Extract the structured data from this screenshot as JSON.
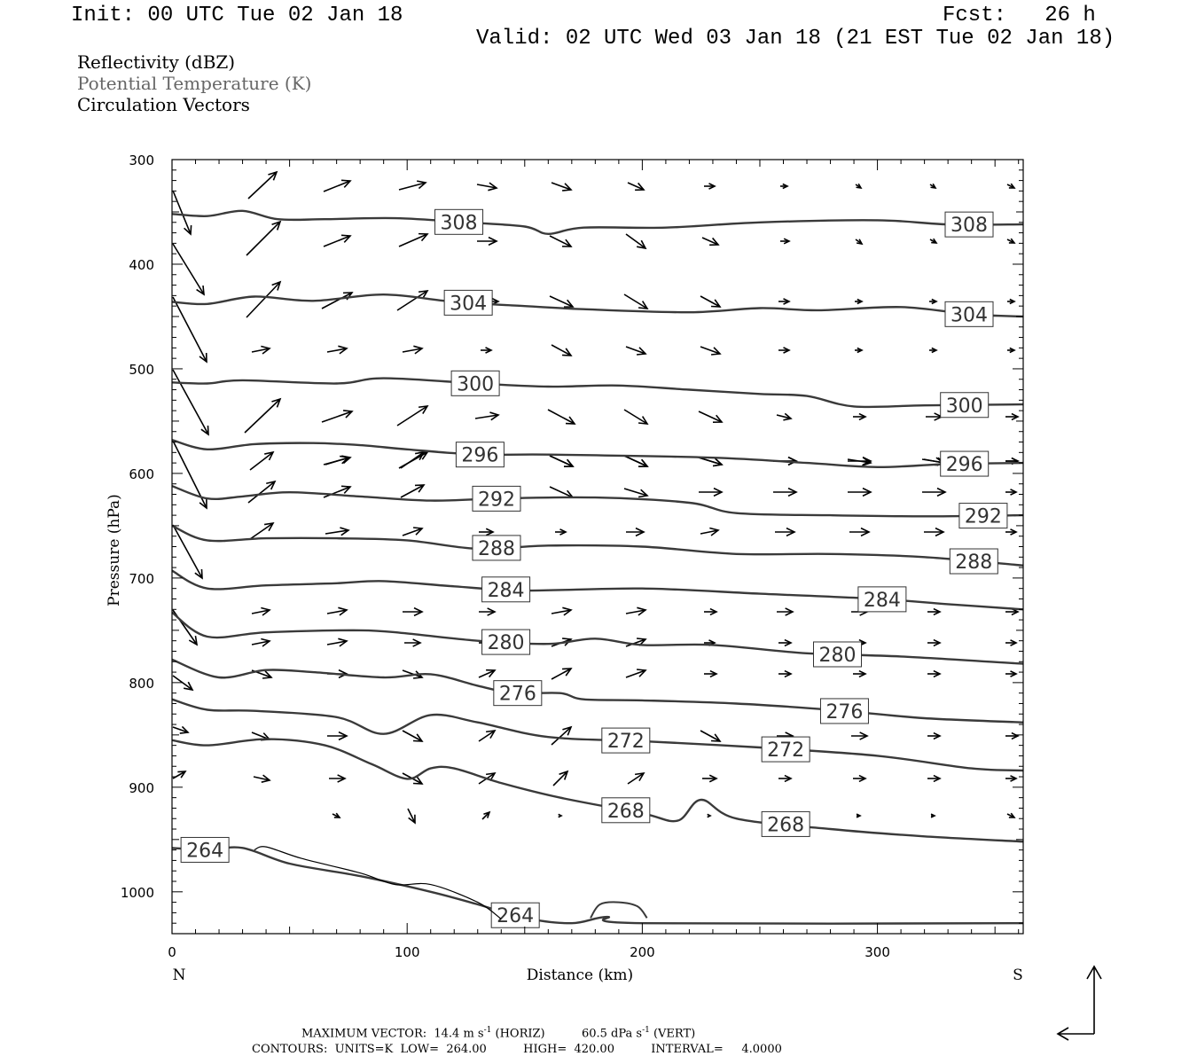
{
  "header": {
    "init": "Init: 00 UTC Tue 02 Jan 18",
    "fcst": "Fcst:   26 h",
    "valid": "Valid: 02 UTC Wed 03 Jan 18 (21 EST Tue 02 Jan 18)"
  },
  "legend": {
    "line1": "Reflectivity (dBZ)",
    "line2": "Potential Temperature (K)",
    "line3": "Circulation Vectors"
  },
  "footer": {
    "vector_prefix": "MAXIMUM VECTOR:  14.4 m s",
    "vector_mid": " (HORIZ)          60.5 dPa s",
    "vector_suffix": " (VERT)",
    "exponent": "-1",
    "contours": "CONTOURS:  UNITS=K  LOW=  264.00          HIGH=  420.00          INTERVAL=     4.0000"
  },
  "chart_data": {
    "type": "line",
    "title": "",
    "xlabel": "Distance (km)",
    "ylabel": "Pressure (hPa)",
    "xlim": [
      0,
      362
    ],
    "ylim": [
      1040,
      300
    ],
    "y_axis_reversed": true,
    "x_ticks": [
      0,
      100,
      200,
      300
    ],
    "y_ticks": [
      300,
      400,
      500,
      600,
      700,
      800,
      900,
      1000
    ],
    "x_end_labels": {
      "left": "N",
      "right": "S"
    },
    "grid": false,
    "contour_units": "K",
    "series": [
      {
        "name": "308",
        "points": [
          [
            0,
            352
          ],
          [
            15,
            354
          ],
          [
            30,
            349
          ],
          [
            45,
            357
          ],
          [
            65,
            357
          ],
          [
            95,
            356
          ],
          [
            125,
            360
          ],
          [
            150,
            364
          ],
          [
            160,
            371
          ],
          [
            175,
            365
          ],
          [
            210,
            365
          ],
          [
            250,
            360
          ],
          [
            300,
            358
          ],
          [
            330,
            362
          ],
          [
            362,
            362
          ]
        ]
      },
      {
        "name": "304",
        "points": [
          [
            0,
            436
          ],
          [
            15,
            438
          ],
          [
            35,
            431
          ],
          [
            60,
            435
          ],
          [
            90,
            429
          ],
          [
            120,
            436
          ],
          [
            150,
            440
          ],
          [
            175,
            443
          ],
          [
            220,
            446
          ],
          [
            250,
            442
          ],
          [
            275,
            444
          ],
          [
            310,
            441
          ],
          [
            340,
            448
          ],
          [
            362,
            450
          ]
        ]
      },
      {
        "name": "300",
        "points": [
          [
            0,
            513
          ],
          [
            15,
            514
          ],
          [
            30,
            511
          ],
          [
            70,
            514
          ],
          [
            90,
            509
          ],
          [
            130,
            514
          ],
          [
            160,
            517
          ],
          [
            190,
            516
          ],
          [
            220,
            520
          ],
          [
            250,
            524
          ],
          [
            270,
            526
          ],
          [
            290,
            536
          ],
          [
            320,
            535
          ],
          [
            362,
            534
          ]
        ]
      },
      {
        "name": "296",
        "points": [
          [
            0,
            568
          ],
          [
            15,
            577
          ],
          [
            35,
            572
          ],
          [
            60,
            571
          ],
          [
            80,
            573
          ],
          [
            100,
            577
          ],
          [
            130,
            582
          ],
          [
            160,
            582
          ],
          [
            230,
            585
          ],
          [
            270,
            590
          ],
          [
            300,
            594
          ],
          [
            330,
            591
          ],
          [
            362,
            590
          ]
        ]
      },
      {
        "name": "292",
        "points": [
          [
            0,
            612
          ],
          [
            15,
            624
          ],
          [
            30,
            622
          ],
          [
            50,
            618
          ],
          [
            80,
            622
          ],
          [
            110,
            626
          ],
          [
            140,
            624
          ],
          [
            180,
            623
          ],
          [
            220,
            628
          ],
          [
            240,
            638
          ],
          [
            280,
            640
          ],
          [
            320,
            641
          ],
          [
            362,
            640
          ]
        ]
      },
      {
        "name": "288",
        "points": [
          [
            0,
            650
          ],
          [
            15,
            664
          ],
          [
            40,
            662
          ],
          [
            70,
            662
          ],
          [
            100,
            664
          ],
          [
            130,
            672
          ],
          [
            160,
            669
          ],
          [
            200,
            670
          ],
          [
            240,
            677
          ],
          [
            280,
            677
          ],
          [
            320,
            680
          ],
          [
            362,
            688
          ]
        ]
      },
      {
        "name": "284",
        "points": [
          [
            0,
            693
          ],
          [
            15,
            710
          ],
          [
            40,
            707
          ],
          [
            70,
            705
          ],
          [
            90,
            703
          ],
          [
            120,
            708
          ],
          [
            150,
            712
          ],
          [
            200,
            710
          ],
          [
            250,
            715
          ],
          [
            300,
            720
          ],
          [
            330,
            725
          ],
          [
            362,
            730
          ]
        ]
      },
      {
        "name": "280",
        "points": [
          [
            0,
            733
          ],
          [
            15,
            756
          ],
          [
            40,
            752
          ],
          [
            80,
            750
          ],
          [
            100,
            753
          ],
          [
            130,
            760
          ],
          [
            160,
            763
          ],
          [
            180,
            758
          ],
          [
            200,
            764
          ],
          [
            230,
            764
          ],
          [
            270,
            772
          ],
          [
            310,
            775
          ],
          [
            362,
            782
          ]
        ]
      },
      {
        "name": "276",
        "points": [
          [
            0,
            778
          ],
          [
            20,
            795
          ],
          [
            40,
            788
          ],
          [
            60,
            790
          ],
          [
            90,
            795
          ],
          [
            110,
            792
          ],
          [
            130,
            803
          ],
          [
            145,
            810
          ],
          [
            165,
            810
          ],
          [
            175,
            816
          ],
          [
            200,
            817
          ],
          [
            240,
            820
          ],
          [
            280,
            826
          ],
          [
            320,
            834
          ],
          [
            362,
            838
          ]
        ]
      },
      {
        "name": "272",
        "points": [
          [
            0,
            816
          ],
          [
            15,
            826
          ],
          [
            35,
            827
          ],
          [
            70,
            833
          ],
          [
            90,
            849
          ],
          [
            110,
            831
          ],
          [
            130,
            838
          ],
          [
            160,
            852
          ],
          [
            200,
            856
          ],
          [
            250,
            862
          ],
          [
            300,
            870
          ],
          [
            340,
            882
          ],
          [
            362,
            884
          ]
        ]
      },
      {
        "name": "268",
        "points": [
          [
            0,
            855
          ],
          [
            15,
            860
          ],
          [
            40,
            854
          ],
          [
            65,
            860
          ],
          [
            85,
            878
          ],
          [
            100,
            892
          ],
          [
            110,
            882
          ],
          [
            120,
            882
          ],
          [
            140,
            896
          ],
          [
            165,
            910
          ],
          [
            200,
            925
          ],
          [
            215,
            932
          ],
          [
            225,
            912
          ],
          [
            240,
            930
          ],
          [
            280,
            940
          ],
          [
            320,
            947
          ],
          [
            362,
            952
          ]
        ]
      },
      {
        "name": "264",
        "points": [
          [
            0,
            958
          ],
          [
            15,
            960
          ],
          [
            30,
            958
          ],
          [
            50,
            973
          ],
          [
            80,
            985
          ],
          [
            110,
            1000
          ],
          [
            130,
            1012
          ],
          [
            150,
            1025
          ],
          [
            170,
            1030
          ],
          [
            185,
            1024
          ],
          [
            200,
            1030
          ],
          [
            362,
            1030
          ]
        ]
      }
    ]
  }
}
